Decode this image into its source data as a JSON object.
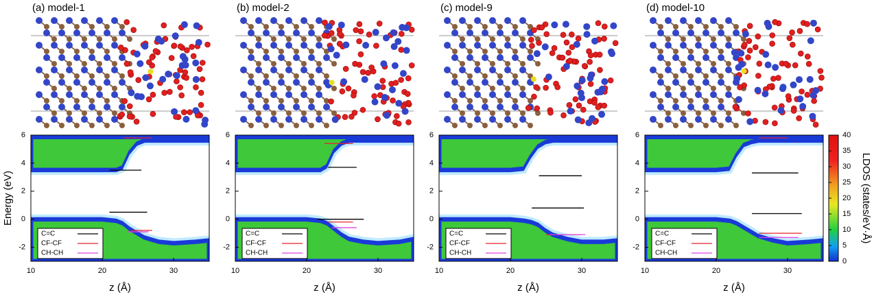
{
  "chart_data": [
    {
      "type": "heatmap",
      "title": "(a) model-1",
      "xlabel": "z (Å)",
      "ylabel": "Energy (eV)",
      "xlim": [
        10,
        35
      ],
      "xticks": [
        10,
        20,
        30
      ],
      "ylim": [
        -3,
        6
      ],
      "yticks": [
        -2,
        0,
        2,
        4,
        6
      ],
      "band_edges": {
        "z": [
          10,
          15,
          20,
          22,
          23,
          24,
          25,
          26,
          28,
          30,
          33,
          35
        ],
        "vbm": [
          0,
          0,
          0,
          -0.1,
          -0.3,
          -0.7,
          -1.0,
          -1.3,
          -1.6,
          -1.7,
          -1.6,
          -1.5
        ],
        "cbm": [
          3.5,
          3.5,
          3.5,
          3.5,
          3.7,
          4.8,
          5.4,
          5.6,
          5.6,
          5.6,
          5.6,
          5.6
        ]
      },
      "series": [
        {
          "name": "C=C",
          "color": "#000000",
          "segments": [
            [
              21,
              25.5,
              3.5
            ],
            [
              21,
              26.3,
              0.5
            ]
          ]
        },
        {
          "name": "CF-CF",
          "color": "#e8202a",
          "segments": [
            [
              23,
              27,
              5.8
            ],
            [
              24,
              27,
              -0.8
            ]
          ]
        },
        {
          "name": "CH-CH",
          "color": "#e040e0",
          "segments": [
            [
              23.5,
              26.5,
              -0.9
            ]
          ]
        }
      ]
    },
    {
      "type": "heatmap",
      "title": "(b) model-2",
      "xlabel": "z (Å)",
      "xlim": [
        10,
        35
      ],
      "xticks": [
        10,
        20,
        30
      ],
      "ylim": [
        -3,
        6
      ],
      "yticks": [
        -2,
        0,
        2,
        4,
        6
      ],
      "band_edges": {
        "z": [
          10,
          15,
          20,
          22,
          23,
          24,
          25,
          26,
          28,
          30,
          33,
          35
        ],
        "vbm": [
          0,
          0,
          0,
          -0.1,
          -0.3,
          -0.7,
          -1.1,
          -1.4,
          -1.6,
          -1.7,
          -1.6,
          -1.4
        ],
        "cbm": [
          3.5,
          3.5,
          3.5,
          3.5,
          3.8,
          4.9,
          5.4,
          5.6,
          5.6,
          5.6,
          5.6,
          5.6
        ]
      },
      "series": [
        {
          "name": "C=C",
          "color": "#000000",
          "segments": [
            [
              23,
              27,
              3.7
            ],
            [
              21.5,
              28,
              0.0
            ]
          ]
        },
        {
          "name": "CF-CF",
          "color": "#e8202a",
          "segments": [
            [
              22.5,
              26.5,
              5.4
            ],
            [
              23,
              26.5,
              -0.2
            ]
          ]
        },
        {
          "name": "CH-CH",
          "color": "#e040e0",
          "segments": [
            [
              23.5,
              27,
              -0.6
            ]
          ]
        }
      ]
    },
    {
      "type": "heatmap",
      "title": "(c) model-9",
      "xlabel": "z (Å)",
      "xlim": [
        10,
        35
      ],
      "xticks": [
        10,
        20,
        30
      ],
      "ylim": [
        -3,
        6
      ],
      "yticks": [
        -2,
        0,
        2,
        4,
        6
      ],
      "band_edges": {
        "z": [
          10,
          15,
          20,
          22,
          23,
          24,
          25,
          26,
          28,
          30,
          33,
          35
        ],
        "vbm": [
          0,
          0,
          0,
          -0.1,
          -0.2,
          -0.4,
          -0.8,
          -1.1,
          -1.4,
          -1.6,
          -1.6,
          -1.5
        ],
        "cbm": [
          3.5,
          3.5,
          3.5,
          3.6,
          4.5,
          5.2,
          5.5,
          5.6,
          5.6,
          5.6,
          5.6,
          5.6
        ]
      },
      "series": [
        {
          "name": "C=C",
          "color": "#000000",
          "segments": [
            [
              24,
              30,
              3.1
            ],
            [
              23,
              30.3,
              0.8
            ]
          ]
        },
        {
          "name": "CF-CF",
          "color": "#e8202a",
          "segments": [
            [
              25,
              30,
              -1.1
            ]
          ]
        },
        {
          "name": "CH-CH",
          "color": "#e040e0",
          "segments": [
            [
              25.5,
              30.5,
              -1.1
            ]
          ]
        }
      ]
    },
    {
      "type": "heatmap",
      "title": "(d) model-10",
      "xlabel": "z (Å)",
      "xlim": [
        10,
        35
      ],
      "xticks": [
        10,
        20,
        30
      ],
      "ylim": [
        -3,
        6
      ],
      "yticks": [
        -2,
        0,
        2,
        4,
        6
      ],
      "band_edges": {
        "z": [
          10,
          15,
          20,
          22,
          23,
          24,
          25,
          26,
          28,
          30,
          33,
          35
        ],
        "vbm": [
          0,
          0,
          0,
          -0.1,
          -0.3,
          -0.6,
          -0.9,
          -1.2,
          -1.5,
          -1.7,
          -1.6,
          -1.5
        ],
        "cbm": [
          3.5,
          3.5,
          3.5,
          3.6,
          4.6,
          5.3,
          5.5,
          5.6,
          5.6,
          5.6,
          5.6,
          5.6
        ]
      },
      "series": [
        {
          "name": "C=C",
          "color": "#000000",
          "segments": [
            [
              25,
              31.5,
              3.3
            ],
            [
              25,
              32,
              0.4
            ]
          ]
        },
        {
          "name": "CF-CF",
          "color": "#e8202a",
          "segments": [
            [
              26,
              30,
              5.8
            ],
            [
              26,
              32,
              -1.0
            ]
          ]
        },
        {
          "name": "CH-CH",
          "color": "#e040e0",
          "segments": [
            [
              26,
              31.5,
              -1.3
            ]
          ]
        }
      ],
      "colorbar": {
        "label": "LDOS (states/eV·Å)",
        "lim": [
          0,
          40
        ],
        "ticks": [
          0,
          5,
          10,
          15,
          20,
          25,
          30,
          35,
          40
        ]
      }
    }
  ]
}
